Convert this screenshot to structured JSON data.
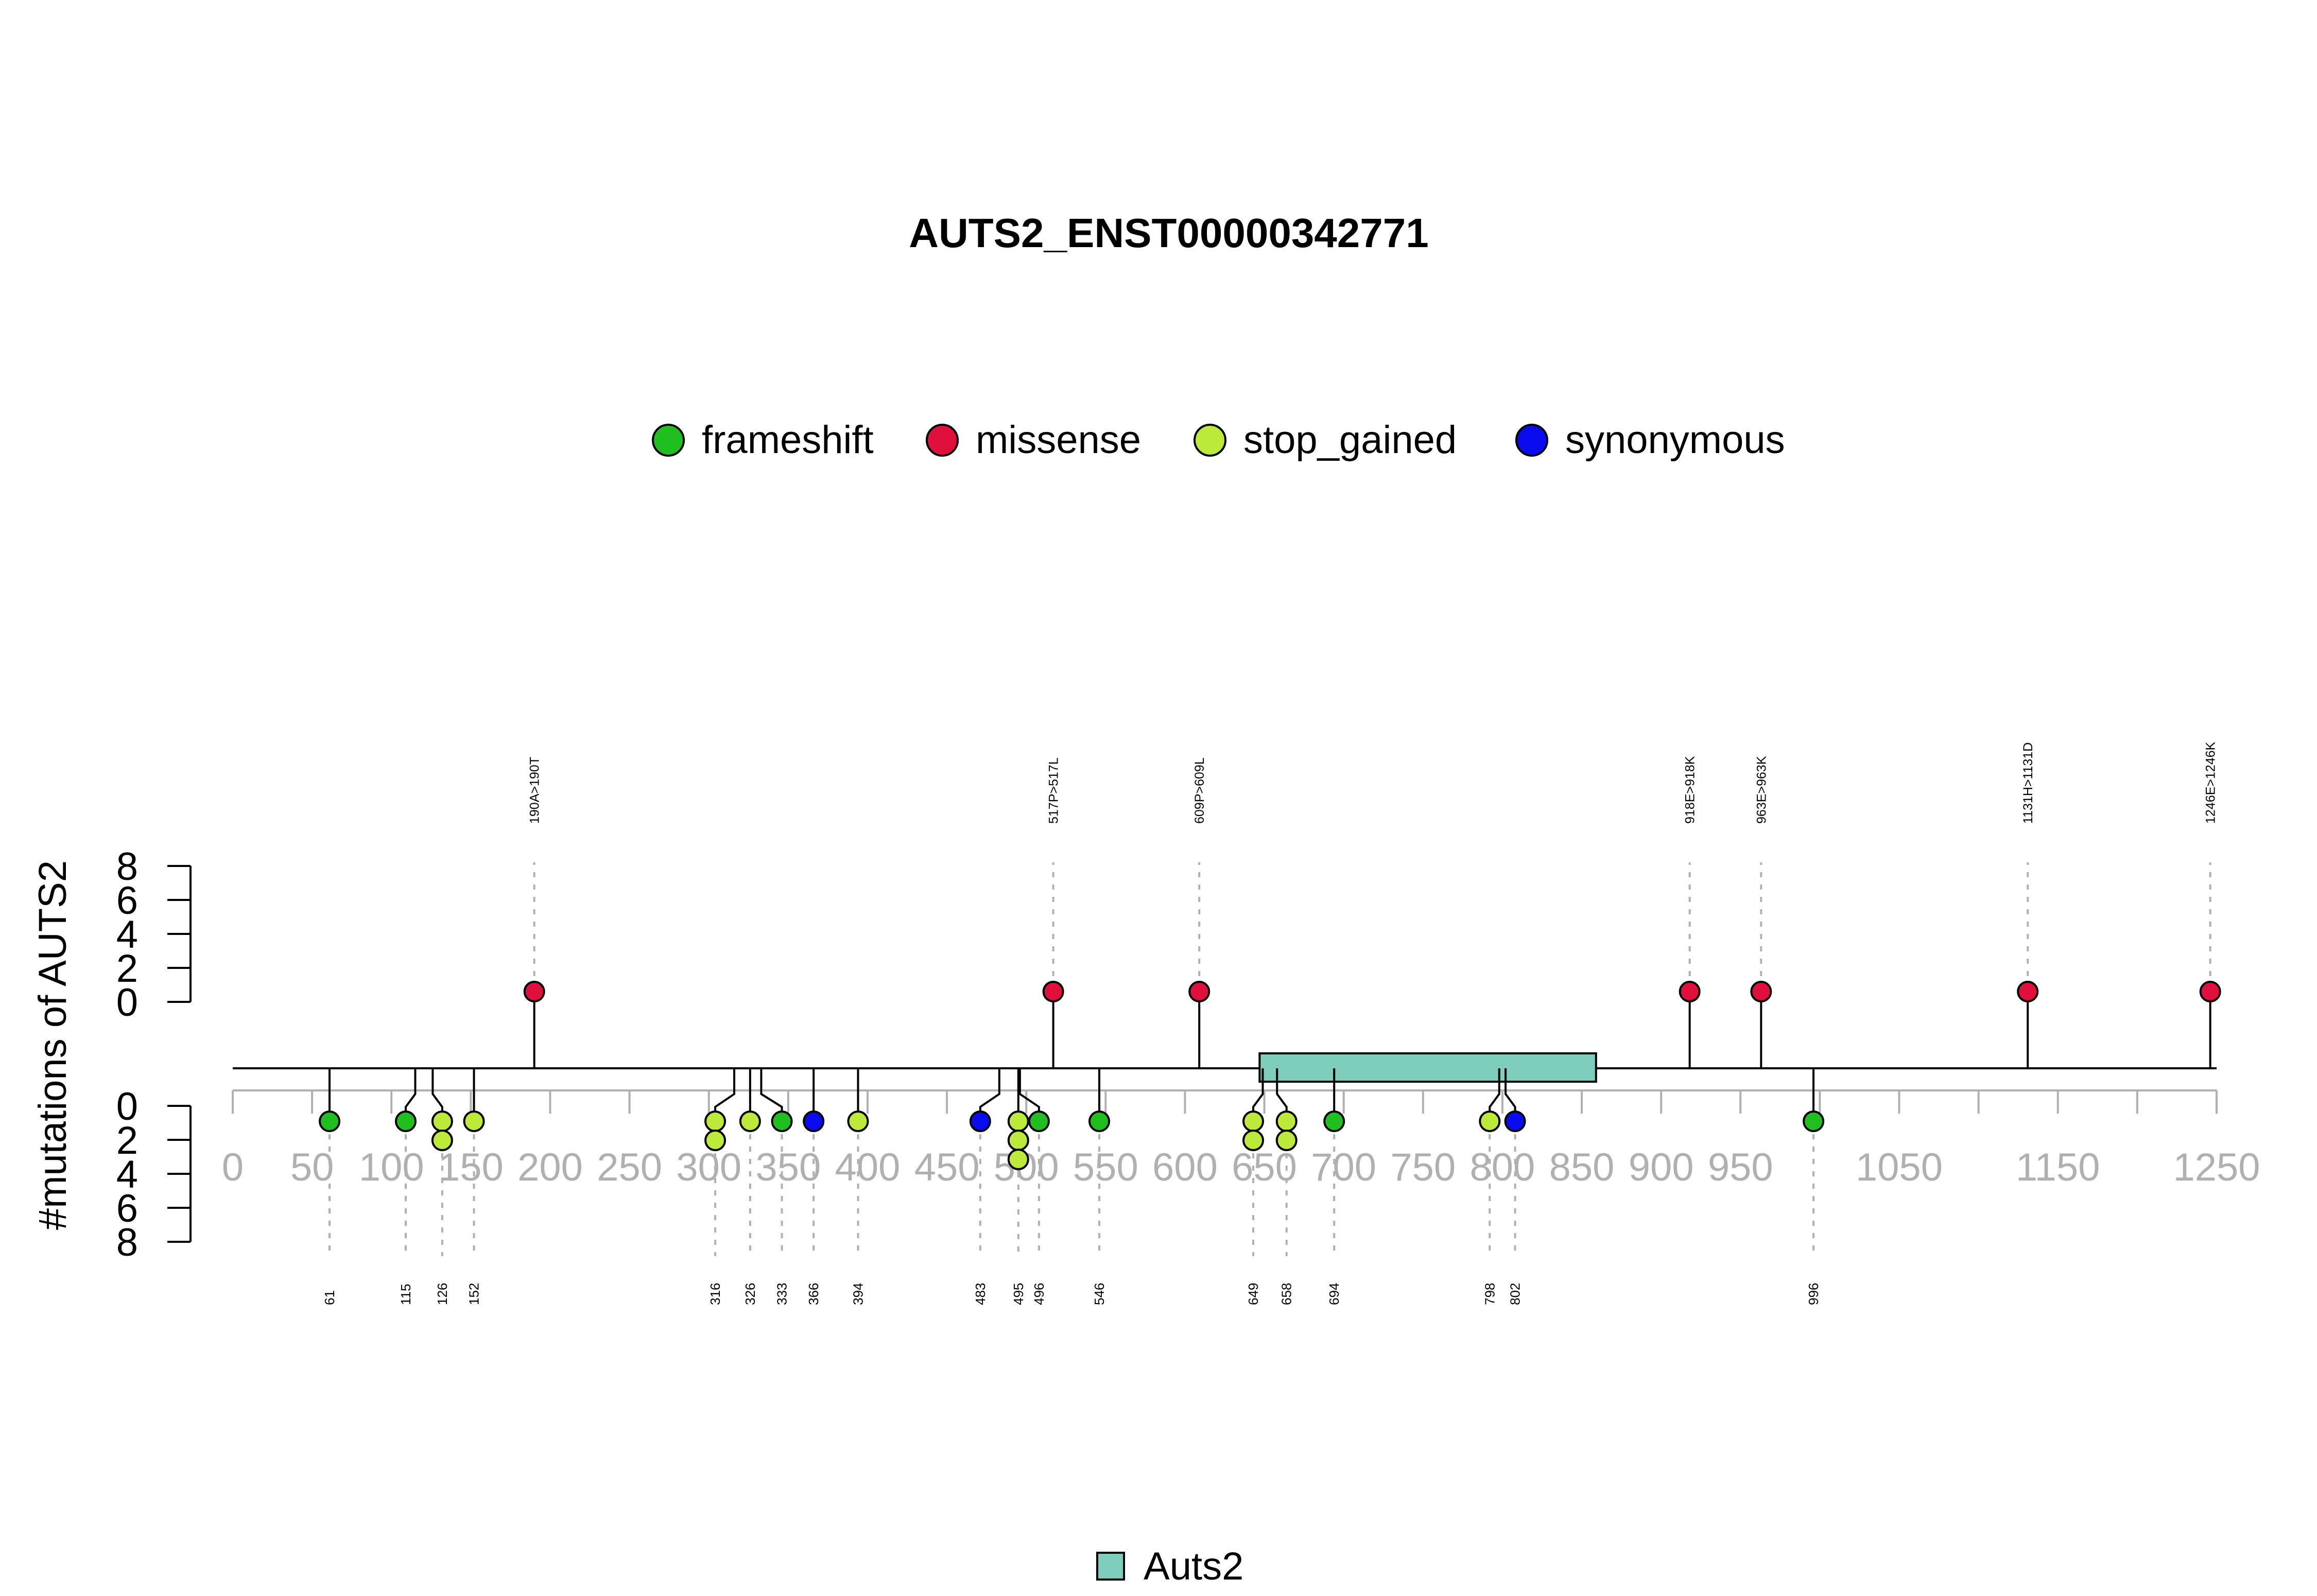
{
  "chart_data": {
    "type": "lollipop",
    "title": "AUTS2_ENST00000342771",
    "ylabel": "#mutations of AUTS2",
    "xlim": [
      0,
      1250
    ],
    "x_ticks": [
      0,
      50,
      100,
      150,
      200,
      250,
      300,
      350,
      400,
      450,
      500,
      550,
      600,
      650,
      700,
      750,
      800,
      850,
      900,
      950,
      1050,
      1150,
      1250
    ],
    "y_ticks_upper": [
      "8",
      "6",
      "4",
      "2",
      "0"
    ],
    "y_ticks_lower": [
      "0",
      "2",
      "4",
      "6",
      "8"
    ],
    "legend": [
      {
        "label": "frameshift",
        "color": "#1fbf1f"
      },
      {
        "label": "missense",
        "color": "#e0103c"
      },
      {
        "label": "stop_gained",
        "color": "#bdea3a"
      },
      {
        "label": "synonymous",
        "color": "#0b0bf0"
      }
    ],
    "domain_legend": {
      "label": "Auts2",
      "color": "#7fcdbb"
    },
    "domains": [
      {
        "name": "Auts2",
        "start": 647,
        "end": 859
      }
    ],
    "upper_mutations": [
      {
        "pos": 190,
        "label": "190A>190T",
        "type": "missense",
        "count": 1
      },
      {
        "pos": 517,
        "label": "517P>517L",
        "type": "missense",
        "count": 1
      },
      {
        "pos": 609,
        "label": "609P>609L",
        "type": "missense",
        "count": 1
      },
      {
        "pos": 918,
        "label": "918E>918K",
        "type": "missense",
        "count": 1
      },
      {
        "pos": 963,
        "label": "963E>963K",
        "type": "missense",
        "count": 1
      },
      {
        "pos": 1131,
        "label": "1131H>1131D",
        "type": "missense",
        "count": 1
      },
      {
        "pos": 1246,
        "label": "1246E>1246K",
        "type": "missense",
        "count": 1
      }
    ],
    "lower_mutations": [
      {
        "pos": 61,
        "label": "61",
        "display_x": 61,
        "types": [
          "frameshift"
        ]
      },
      {
        "pos": 115,
        "label": "115",
        "display_x": 109,
        "types": [
          "frameshift"
        ]
      },
      {
        "pos": 126,
        "label": "126",
        "display_x": 132,
        "types": [
          "stop_gained",
          "stop_gained"
        ]
      },
      {
        "pos": 152,
        "label": "152",
        "display_x": 152,
        "types": [
          "stop_gained"
        ]
      },
      {
        "pos": 316,
        "label": "316",
        "display_x": 304,
        "types": [
          "stop_gained",
          "stop_gained"
        ]
      },
      {
        "pos": 326,
        "label": "326",
        "display_x": 326,
        "types": [
          "stop_gained"
        ]
      },
      {
        "pos": 333,
        "label": "333",
        "display_x": 346,
        "types": [
          "frameshift"
        ]
      },
      {
        "pos": 366,
        "label": "366",
        "display_x": 366,
        "types": [
          "synonymous"
        ]
      },
      {
        "pos": 394,
        "label": "394",
        "display_x": 394,
        "types": [
          "stop_gained"
        ]
      },
      {
        "pos": 483,
        "label": "483",
        "display_x": 471,
        "types": [
          "synonymous"
        ]
      },
      {
        "pos": 495,
        "label": "495",
        "display_x": 495,
        "types": [
          "stop_gained",
          "stop_gained",
          "stop_gained"
        ]
      },
      {
        "pos": 496,
        "label": "496",
        "display_x": 508,
        "types": [
          "frameshift"
        ]
      },
      {
        "pos": 546,
        "label": "546",
        "display_x": 546,
        "types": [
          "frameshift"
        ]
      },
      {
        "pos": 649,
        "label": "649",
        "display_x": 643,
        "types": [
          "stop_gained",
          "stop_gained"
        ]
      },
      {
        "pos": 658,
        "label": "658",
        "display_x": 664,
        "types": [
          "stop_gained",
          "stop_gained"
        ]
      },
      {
        "pos": 694,
        "label": "694",
        "display_x": 694,
        "types": [
          "frameshift"
        ]
      },
      {
        "pos": 798,
        "label": "798",
        "display_x": 792,
        "types": [
          "stop_gained"
        ]
      },
      {
        "pos": 802,
        "label": "802",
        "display_x": 808,
        "types": [
          "synonymous"
        ]
      },
      {
        "pos": 996,
        "label": "996",
        "display_x": 996,
        "types": [
          "frameshift"
        ]
      }
    ]
  }
}
